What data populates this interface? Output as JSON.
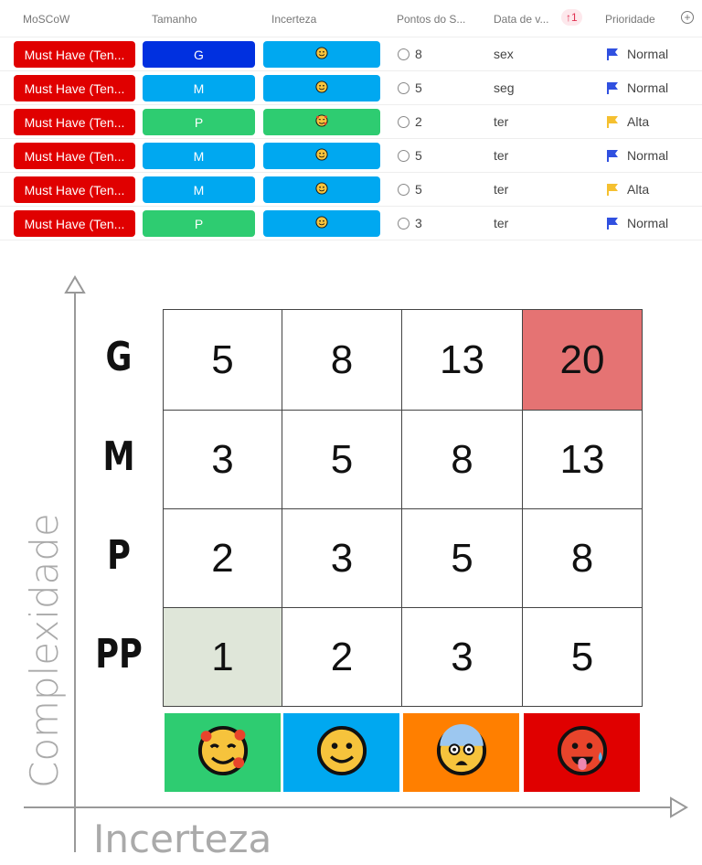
{
  "table": {
    "headers": [
      "MoSCoW",
      "Tamanho",
      "Incerteza",
      "Pontos do S...",
      "Data de v...",
      "Prioridade"
    ],
    "sort_badge": "↑1",
    "add_column_icon": "plus-circle-icon",
    "rows": [
      {
        "moscow": "Must Have (Ten...",
        "tamanho": "G",
        "tamanho_color": "#0030e0",
        "incerteza_color": "#00a8f0",
        "incerteza_icon": "slightly-smiling-face",
        "pontos": "8",
        "data": "sex",
        "prioridade": "Normal",
        "flag_color": "#3050e0"
      },
      {
        "moscow": "Must Have (Ten...",
        "tamanho": "M",
        "tamanho_color": "#00a8f0",
        "incerteza_color": "#00a8f0",
        "incerteza_icon": "slightly-smiling-face",
        "pontos": "5",
        "data": "seg",
        "prioridade": "Normal",
        "flag_color": "#3050e0"
      },
      {
        "moscow": "Must Have (Ten...",
        "tamanho": "P",
        "tamanho_color": "#2ecc71",
        "incerteza_color": "#2ecc71",
        "incerteza_icon": "smiling-face-with-hearts",
        "pontos": "2",
        "data": "ter",
        "prioridade": "Alta",
        "flag_color": "#f5c030"
      },
      {
        "moscow": "Must Have (Ten...",
        "tamanho": "M",
        "tamanho_color": "#00a8f0",
        "incerteza_color": "#00a8f0",
        "incerteza_icon": "slightly-smiling-face",
        "pontos": "5",
        "data": "ter",
        "prioridade": "Normal",
        "flag_color": "#3050e0"
      },
      {
        "moscow": "Must Have (Ten...",
        "tamanho": "M",
        "tamanho_color": "#00a8f0",
        "incerteza_color": "#00a8f0",
        "incerteza_icon": "slightly-smiling-face",
        "pontos": "5",
        "data": "ter",
        "prioridade": "Alta",
        "flag_color": "#f5c030"
      },
      {
        "moscow": "Must Have (Ten...",
        "tamanho": "P",
        "tamanho_color": "#2ecc71",
        "incerteza_color": "#00a8f0",
        "incerteza_icon": "slightly-smiling-face",
        "pontos": "3",
        "data": "ter",
        "prioridade": "Normal",
        "flag_color": "#3050e0"
      }
    ]
  },
  "matrix": {
    "y_axis_label": "Complexidade",
    "x_axis_label": "Incerteza",
    "row_labels": [
      "G",
      "M",
      "P",
      "PP"
    ],
    "values": [
      [
        "5",
        "8",
        "13",
        "20"
      ],
      [
        "3",
        "5",
        "8",
        "13"
      ],
      [
        "2",
        "3",
        "5",
        "8"
      ],
      [
        "1",
        "2",
        "3",
        "5"
      ]
    ],
    "highlight_max_color": "#e57373",
    "highlight_min_color": "#dfe6d9",
    "uncertainty": [
      {
        "icon": "smiling-face-with-hearts",
        "color": "#2ecc71"
      },
      {
        "icon": "slightly-smiling-face",
        "color": "#00a8f0"
      },
      {
        "icon": "fearful-face",
        "color": "#ff7f00"
      },
      {
        "icon": "hot-face",
        "color": "#e00000"
      }
    ]
  }
}
